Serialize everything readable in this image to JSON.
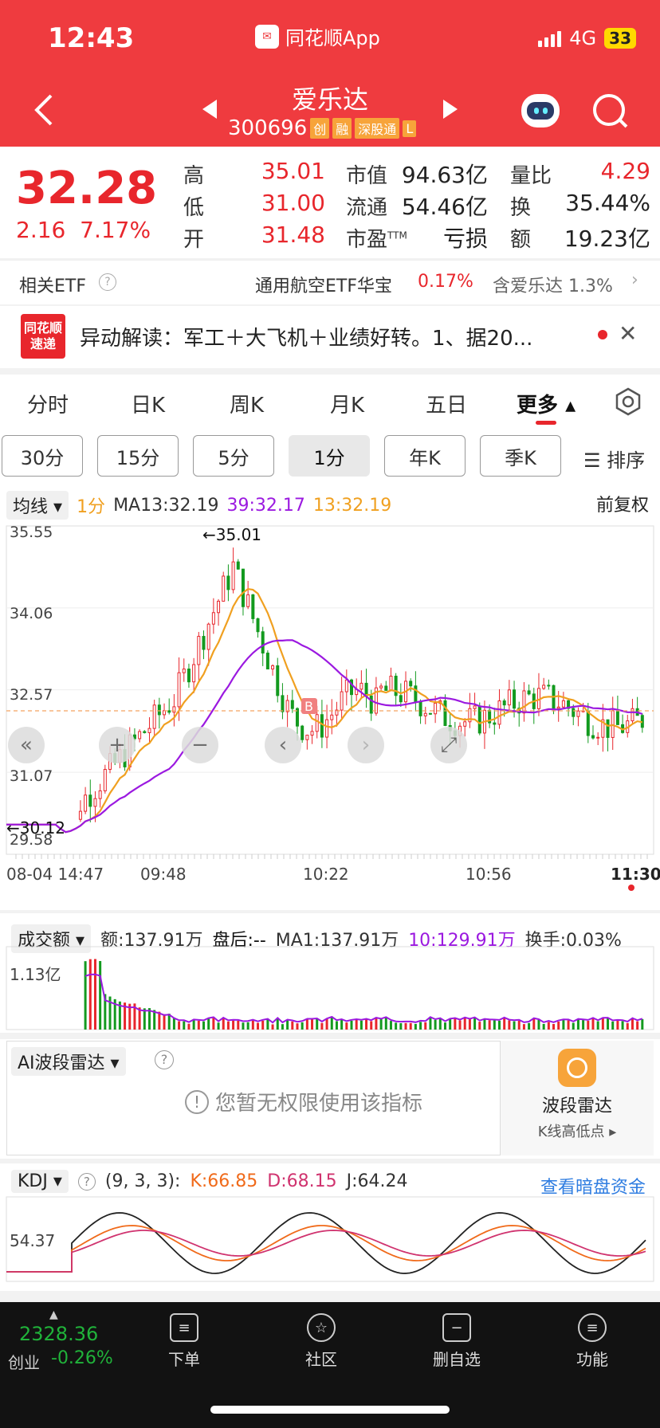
{
  "status": {
    "time": "12:43",
    "app_name": "同花顺App",
    "network": "4G",
    "battery": "33"
  },
  "stock": {
    "name": "爱乐达",
    "code": "300696",
    "tags": [
      "创",
      "融",
      "深股通",
      "L"
    ]
  },
  "quote": {
    "price": "32.28",
    "change": "2.16",
    "change_pct": "7.17%",
    "high_label": "高",
    "high": "35.01",
    "low_label": "低",
    "low": "31.00",
    "open_label": "开",
    "open": "31.48",
    "mcap_label": "市值",
    "mcap": "94.63亿",
    "float_label": "流通",
    "float": "54.46亿",
    "pe_label": "市盈",
    "pe_sup": "TTM",
    "pe": "亏损",
    "vr_label": "量比",
    "vr": "4.29",
    "turn_label": "换",
    "turn": "35.44%",
    "amt_label": "额",
    "amt": "19.23亿"
  },
  "etf": {
    "label": "相关ETF",
    "name": "通用航空ETF华宝",
    "pct": "0.17%",
    "contains": "含爱乐达 1.3%"
  },
  "news": {
    "logo_top": "同花顺",
    "logo_bottom": "速递",
    "text": "异动解读：军工＋大飞机＋业绩好转。1、据20..."
  },
  "tabs": [
    "分时",
    "日K",
    "周K",
    "月K",
    "五日",
    "更多"
  ],
  "periods": [
    "30分",
    "15分",
    "5分",
    "1分",
    "年K",
    "季K"
  ],
  "sort_label": "排序",
  "ma": {
    "selector": "均线",
    "period": "1分",
    "ma13": "MA13:32.19",
    "v39": "39:32.17",
    "v13": "13:32.19",
    "adjust": "前复权"
  },
  "axis": {
    "y_labels": [
      "35.55",
      "34.06",
      "32.57",
      "31.07",
      "29.58"
    ],
    "high_mark": "←35.01",
    "low_mark": "←30.12",
    "buy_marker": "B",
    "x_labels": [
      "08-04 14:47",
      "09:48",
      "10:22",
      "10:56",
      "11:30"
    ]
  },
  "volume": {
    "selector": "成交额",
    "amt": "额:137.91万",
    "after": "盘后:--",
    "ma1": "MA1:137.91万",
    "ma10": "10:129.91万",
    "turnover": "换手:0.03%",
    "y_label": "1.13亿"
  },
  "ai": {
    "selector": "AI波段雷达",
    "notice": "您暂无权限使用该指标",
    "card_title": "波段雷达",
    "card_sub": "K线高低点"
  },
  "kdj": {
    "selector": "KDJ",
    "params": "(9, 3, 3):",
    "k": "K:66.85",
    "d": "D:68.15",
    "j": "J:64.24",
    "link": "查看暗盘资金",
    "y_label": "54.37"
  },
  "bottom": {
    "index_value": "2328.36",
    "index_name": "创业",
    "index_pct": "-0.26%",
    "nav": [
      "下单",
      "社区",
      "删自选",
      "功能"
    ]
  },
  "chart_data": {
    "type": "line",
    "series": [
      {
        "name": "MA13",
        "last": 32.19
      },
      {
        "name": "39",
        "last": 32.17
      },
      {
        "name": "13",
        "last": 32.19
      }
    ],
    "ylim": [
      29.58,
      35.55
    ],
    "x_ticks": [
      "08-04 14:47",
      "09:48",
      "10:22",
      "10:56",
      "11:30"
    ],
    "prev_close": 30.12,
    "high": 35.01,
    "colors": {
      "up": "#e8262c",
      "down": "#139a1f",
      "ma13": "#f0a020",
      "ma39": "#9b19e0"
    }
  }
}
